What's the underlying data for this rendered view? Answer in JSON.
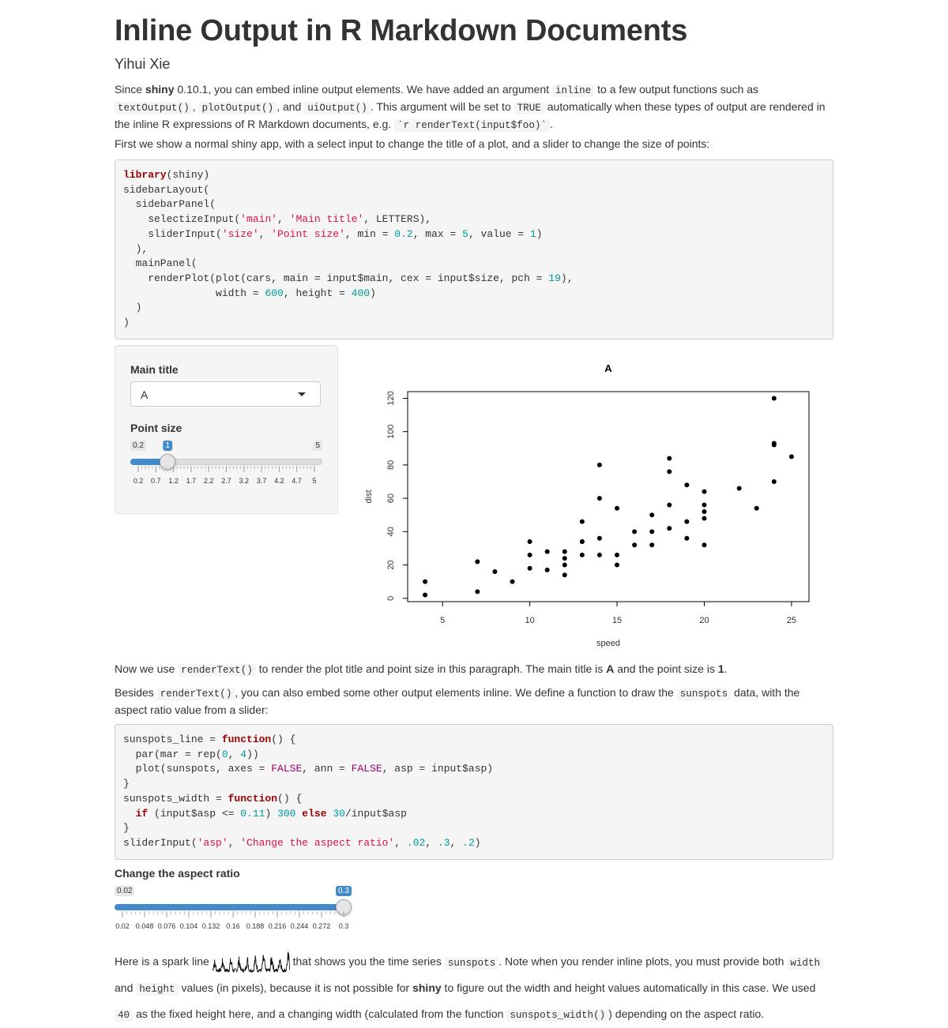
{
  "doc": {
    "title": "Inline Output in R Markdown Documents",
    "author": "Yihui Xie"
  },
  "para1": {
    "a": "Since ",
    "b": "shiny",
    "c": " 0.10.1, you can embed inline output elements. We have added an argument ",
    "code_inline": "inline",
    "d": " to a few output functions such as ",
    "code_text": "textOutput()",
    "e": ", ",
    "code_plot": "plotOutput()",
    "f": ", and ",
    "code_ui": "uiOutput()",
    "g": ". This argument will be set to ",
    "code_true": "TRUE",
    "h": " automatically when these types of output are rendered in the inline R expressions of R Markdown documents, e.g. ",
    "code_expr": "`r renderText(input$foo)`",
    "i": "."
  },
  "para2": "First we show a normal shiny app, with a select input to change the title of a plot, and a slider to change the size of points:",
  "sidebar": {
    "main_title_label": "Main title",
    "main_title_value": "A",
    "point_size_label": "Point size",
    "point_size": {
      "min": 0.2,
      "max": 5,
      "value": 1,
      "min_label": "0.2",
      "max_label": "5",
      "value_label": "1",
      "ticks": [
        "0.2",
        "0.7",
        "1.2",
        "1.7",
        "2.2",
        "2.7",
        "3.2",
        "3.7",
        "4.2",
        "4.7",
        "5"
      ]
    }
  },
  "para3": {
    "a": "Now we use ",
    "code": "renderText()",
    "b": " to render the plot title and point size in this paragraph. The main title is ",
    "title_val": "A",
    "c": " and the point size is ",
    "size_val": "1",
    "d": "."
  },
  "para4": {
    "a": "Besides ",
    "code": "renderText()",
    "b": ", you can also embed some other output elements inline. We define a function to draw the ",
    "code2": "sunspots",
    "c": " data, with the aspect ratio value from a slider:"
  },
  "asp_slider": {
    "label": "Change the aspect ratio",
    "min": 0.02,
    "max": 0.3,
    "value": 0.3,
    "min_label": "0.02",
    "value_label": "0.3",
    "ticks": [
      "0.02",
      "0.048",
      "0.076",
      "0.104",
      "0.132",
      "0.16",
      "0.188",
      "0.216",
      "0.244",
      "0.272",
      "0.3"
    ]
  },
  "para5": {
    "a": "Here is a spark line ",
    "b": " that shows you the time series ",
    "code_sun": "sunspots",
    "c": ". Note when you render inline plots, you must provide both ",
    "code_w": "width",
    "d": " and ",
    "code_h": "height",
    "e": " values (in pixels), because it is not possible for ",
    "shiny": "shiny",
    "f": " to figure out the width and height values automatically in this case. We used ",
    "code_40": "40",
    "g": " as the fixed height here, and a changing width (calculated from the function ",
    "code_fn": "sunspots_width()",
    "h": ") depending on the aspect ratio."
  },
  "chart_data": {
    "type": "scatter",
    "title": "A",
    "xlabel": "speed",
    "ylabel": "dist",
    "xlim": [
      3,
      26
    ],
    "ylim": [
      -2,
      124
    ],
    "xticks": [
      5,
      10,
      15,
      20,
      25
    ],
    "yticks": [
      0,
      20,
      40,
      60,
      80,
      100,
      120
    ],
    "grid": false,
    "points": [
      [
        4,
        2
      ],
      [
        4,
        10
      ],
      [
        7,
        4
      ],
      [
        7,
        22
      ],
      [
        8,
        16
      ],
      [
        9,
        10
      ],
      [
        10,
        18
      ],
      [
        10,
        26
      ],
      [
        10,
        34
      ],
      [
        11,
        17
      ],
      [
        11,
        28
      ],
      [
        12,
        14
      ],
      [
        12,
        20
      ],
      [
        12,
        24
      ],
      [
        12,
        28
      ],
      [
        13,
        26
      ],
      [
        13,
        34
      ],
      [
        13,
        34
      ],
      [
        13,
        46
      ],
      [
        14,
        26
      ],
      [
        14,
        36
      ],
      [
        14,
        60
      ],
      [
        14,
        80
      ],
      [
        15,
        20
      ],
      [
        15,
        26
      ],
      [
        15,
        54
      ],
      [
        16,
        32
      ],
      [
        16,
        40
      ],
      [
        17,
        32
      ],
      [
        17,
        40
      ],
      [
        17,
        50
      ],
      [
        18,
        42
      ],
      [
        18,
        56
      ],
      [
        18,
        76
      ],
      [
        18,
        84
      ],
      [
        19,
        36
      ],
      [
        19,
        46
      ],
      [
        19,
        68
      ],
      [
        20,
        32
      ],
      [
        20,
        48
      ],
      [
        20,
        52
      ],
      [
        20,
        56
      ],
      [
        20,
        64
      ],
      [
        22,
        66
      ],
      [
        23,
        54
      ],
      [
        24,
        70
      ],
      [
        24,
        92
      ],
      [
        24,
        93
      ],
      [
        24,
        120
      ],
      [
        25,
        85
      ]
    ]
  }
}
